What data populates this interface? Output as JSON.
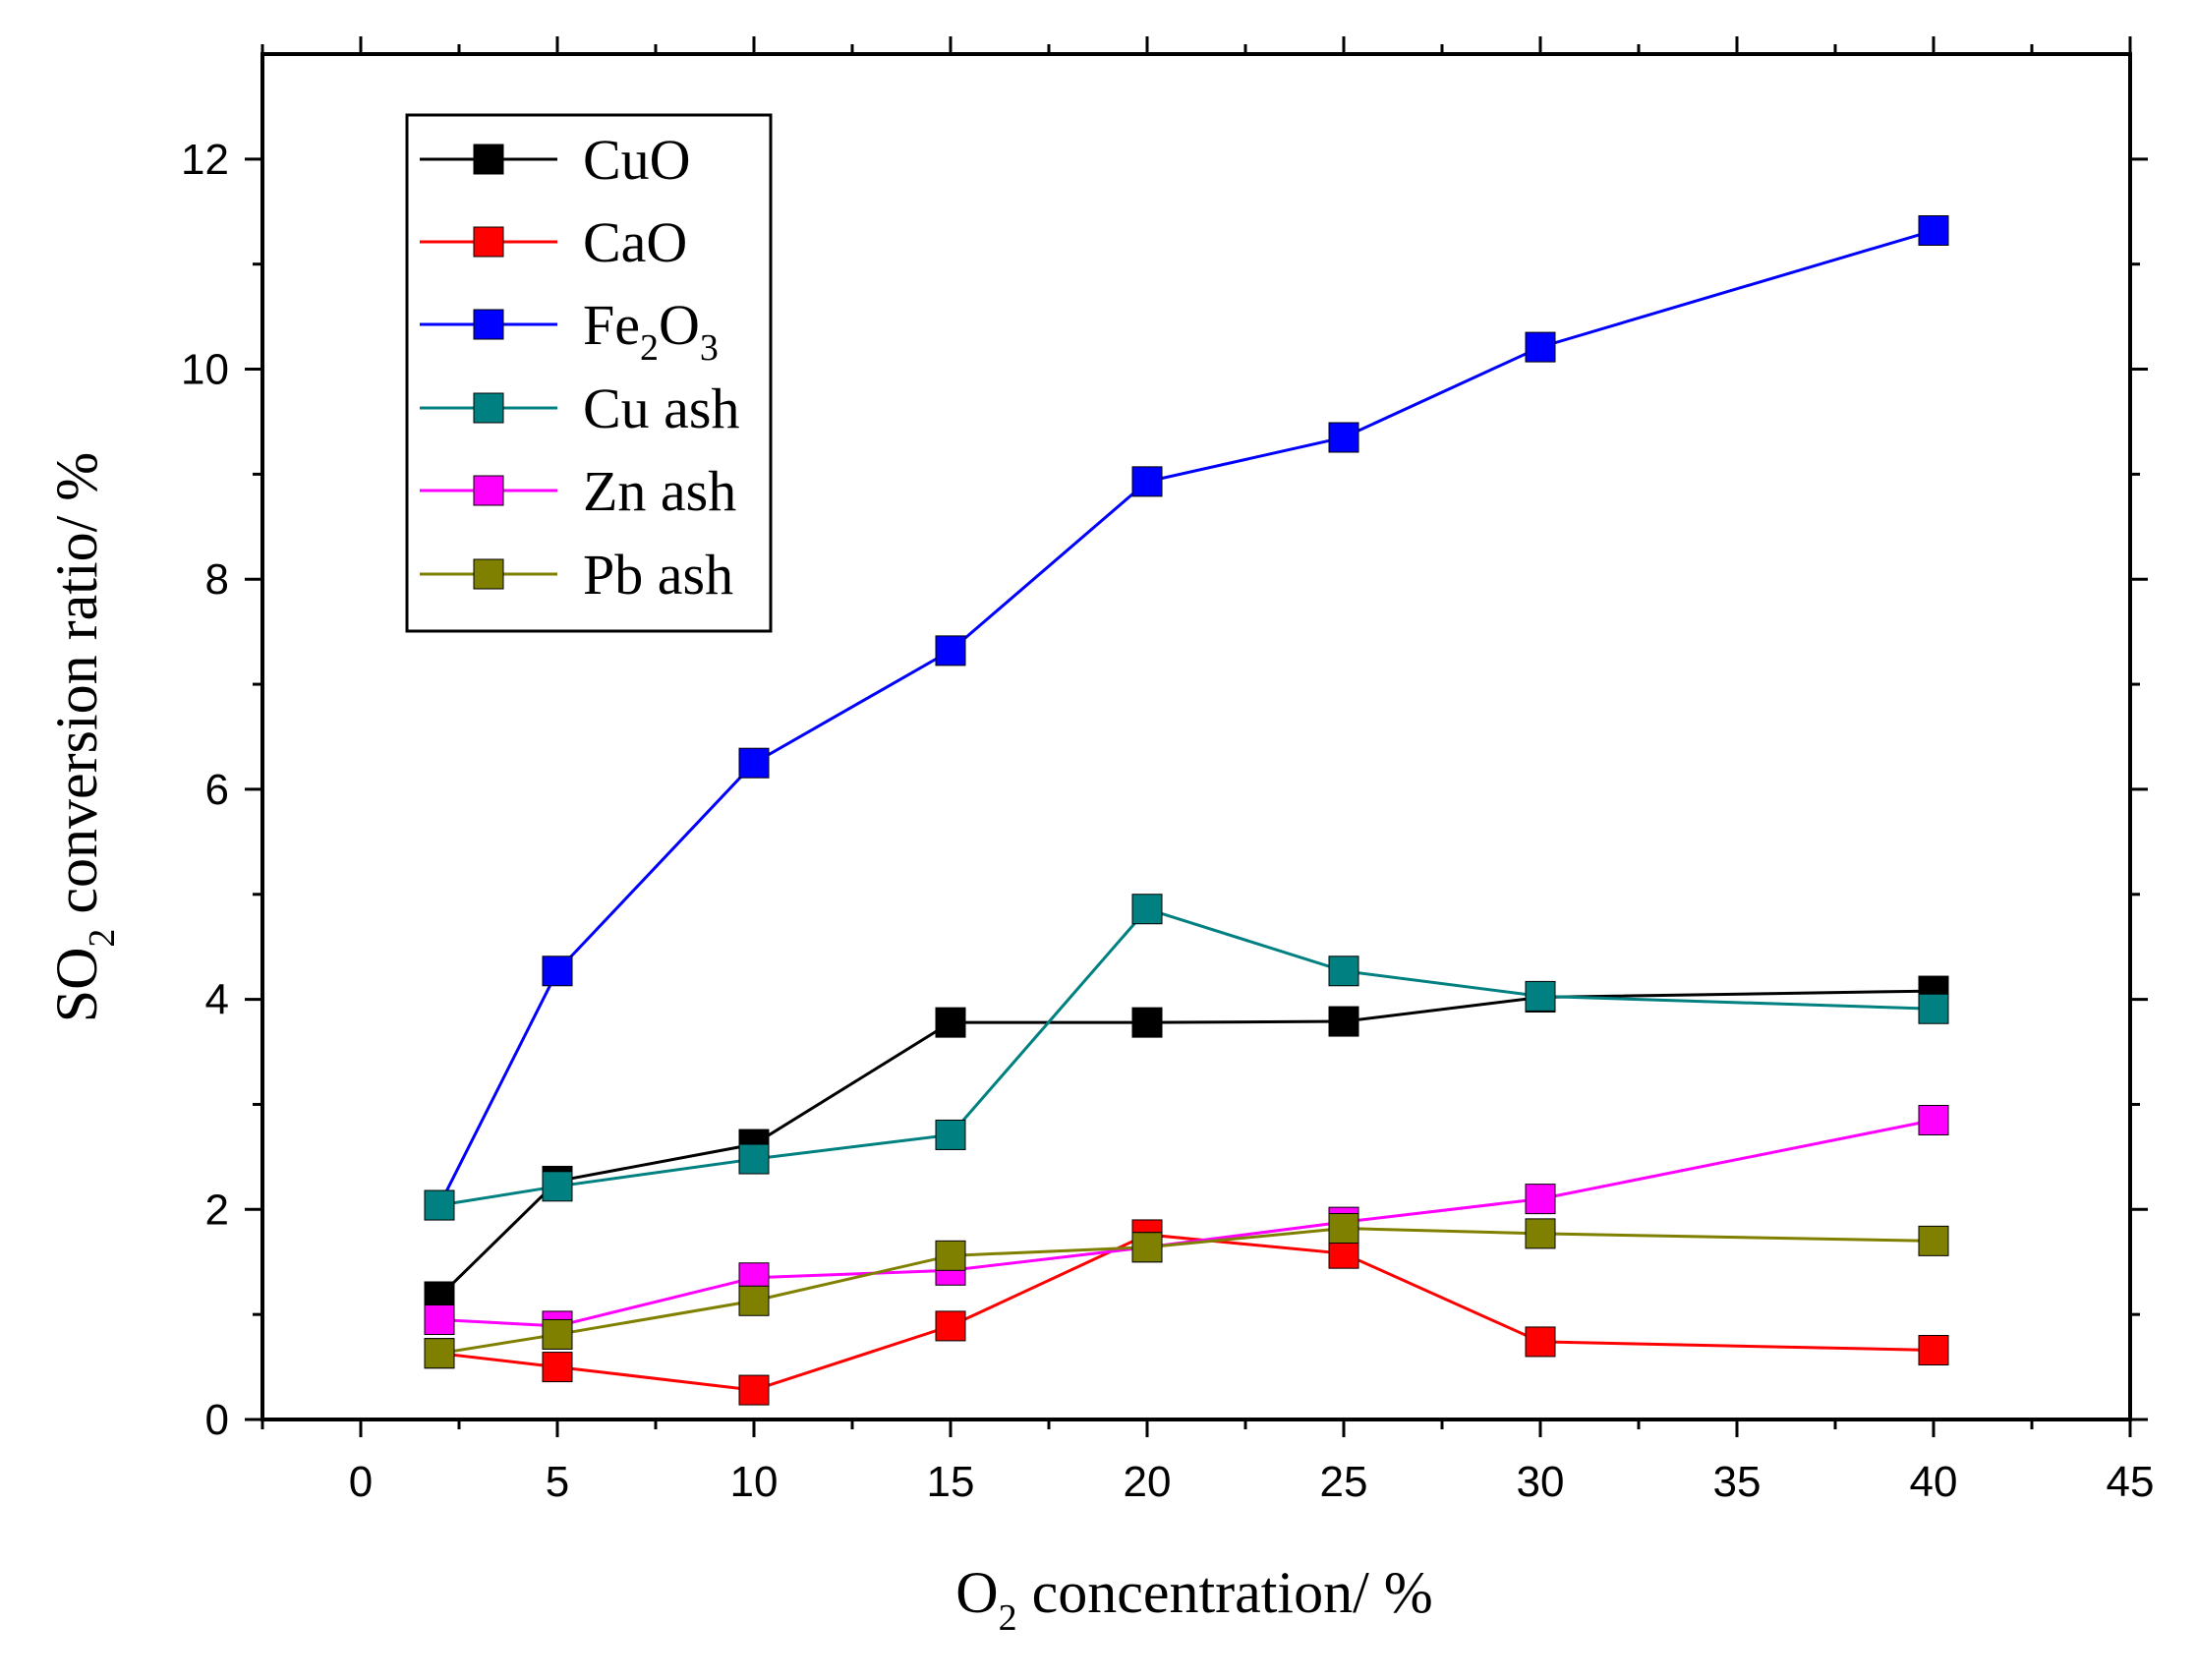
{
  "chart_data": {
    "type": "line",
    "title": "",
    "xlabel": {
      "pre": "O",
      "sub": "2",
      "post": " concentration/ %"
    },
    "ylabel": {
      "pre": "SO",
      "sub": "2",
      "post": " conversion ratio/ %"
    },
    "xlim": [
      -2.5,
      45
    ],
    "ylim": [
      0,
      13
    ],
    "x_ticks": [
      0,
      5,
      10,
      15,
      20,
      25,
      30,
      35,
      40,
      45
    ],
    "y_ticks": [
      0,
      2,
      4,
      6,
      8,
      10,
      12
    ],
    "legend_position": "top-left",
    "series": [
      {
        "name": "CuO",
        "color": "#000000",
        "label_parts": [
          {
            "text": "CuO"
          }
        ],
        "x": [
          2,
          5,
          10,
          15,
          20,
          25,
          30,
          40
        ],
        "values": [
          1.17,
          2.27,
          2.62,
          3.78,
          3.78,
          3.79,
          4.02,
          4.08
        ]
      },
      {
        "name": "CaO",
        "color": "#ff0000",
        "label_parts": [
          {
            "text": "CaO"
          }
        ],
        "x": [
          2,
          5,
          10,
          15,
          20,
          25,
          30,
          40
        ],
        "values": [
          0.63,
          0.5,
          0.28,
          0.89,
          1.76,
          1.58,
          0.74,
          0.66
        ]
      },
      {
        "name": "Fe2O3",
        "color": "#0000ff",
        "label_parts": [
          {
            "text": "Fe"
          },
          {
            "text": "2",
            "sub": true
          },
          {
            "text": "O"
          },
          {
            "text": "3",
            "sub": true
          }
        ],
        "x": [
          2,
          5,
          10,
          15,
          20,
          25,
          30,
          40
        ],
        "values": [
          2.04,
          4.27,
          6.25,
          7.32,
          8.93,
          9.35,
          10.21,
          11.32
        ]
      },
      {
        "name": "Cu ash",
        "color": "#008080",
        "label_parts": [
          {
            "text": "Cu ash"
          }
        ],
        "x": [
          2,
          5,
          10,
          15,
          20,
          25,
          30,
          40
        ],
        "values": [
          2.04,
          2.22,
          2.48,
          2.71,
          4.86,
          4.27,
          4.03,
          3.91
        ]
      },
      {
        "name": "Zn ash",
        "color": "#ff00ff",
        "label_parts": [
          {
            "text": "Zn ash"
          }
        ],
        "x": [
          2,
          5,
          10,
          15,
          20,
          25,
          30,
          40
        ],
        "values": [
          0.95,
          0.89,
          1.35,
          1.42,
          1.64,
          1.88,
          2.1,
          2.85
        ]
      },
      {
        "name": "Pb ash",
        "color": "#808000",
        "label_parts": [
          {
            "text": "Pb ash"
          }
        ],
        "x": [
          2,
          5,
          10,
          15,
          20,
          25,
          30,
          40
        ],
        "values": [
          0.63,
          0.81,
          1.13,
          1.56,
          1.64,
          1.82,
          1.77,
          1.7
        ]
      }
    ]
  }
}
